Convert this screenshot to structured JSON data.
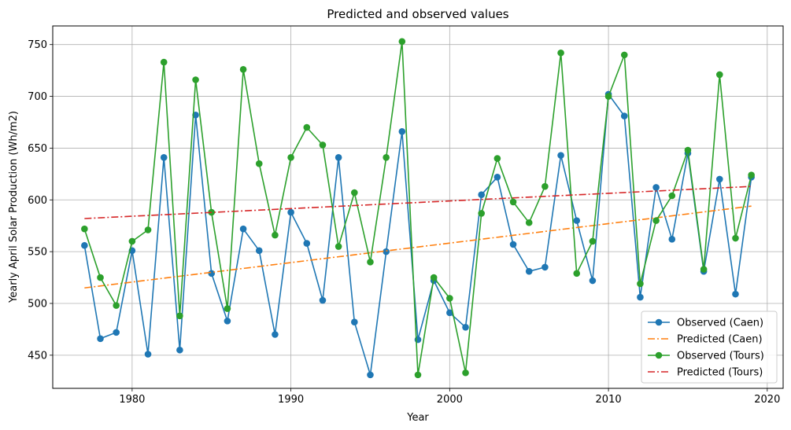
{
  "chart_data": {
    "type": "line",
    "title": "Predicted and observed values",
    "xlabel": "Year",
    "ylabel": "Yearly April Solar Production (Wh/m2)",
    "xlim": [
      1975,
      2021
    ],
    "ylim": [
      418,
      768
    ],
    "xticks": [
      1980,
      1990,
      2000,
      2010,
      2020
    ],
    "yticks": [
      450,
      500,
      550,
      600,
      650,
      700,
      750
    ],
    "grid": true,
    "legend_position": "lower-right",
    "x": [
      1977,
      1978,
      1979,
      1980,
      1981,
      1982,
      1983,
      1984,
      1985,
      1986,
      1987,
      1988,
      1989,
      1990,
      1991,
      1992,
      1993,
      1994,
      1995,
      1996,
      1997,
      1998,
      1999,
      2000,
      2001,
      2002,
      2003,
      2004,
      2005,
      2006,
      2007,
      2008,
      2009,
      2010,
      2011,
      2012,
      2013,
      2014,
      2015,
      2016,
      2017,
      2018,
      2019
    ],
    "series": [
      {
        "name": "Observed (Caen)",
        "color": "#1f77b4",
        "style": "solid-marker",
        "values": [
          556,
          466,
          472,
          551,
          451,
          641,
          455,
          682,
          529,
          483,
          572,
          551,
          470,
          588,
          558,
          503,
          641,
          482,
          431,
          550,
          666,
          465,
          522,
          491,
          477,
          605,
          622,
          557,
          531,
          535,
          643,
          580,
          522,
          702,
          681,
          506,
          612,
          562,
          645,
          531,
          620,
          509,
          622
        ]
      },
      {
        "name": "Predicted (Caen)",
        "color": "#ff7f0e",
        "style": "dashdot",
        "from": [
          1977,
          515
        ],
        "to": [
          2019,
          594
        ]
      },
      {
        "name": "Observed (Tours)",
        "color": "#2ca02c",
        "style": "solid-marker",
        "values": [
          572,
          525,
          498,
          560,
          571,
          733,
          488,
          716,
          588,
          495,
          726,
          635,
          566,
          641,
          670,
          653,
          555,
          607,
          540,
          641,
          753,
          431,
          525,
          505,
          433,
          587,
          640,
          598,
          578,
          613,
          742,
          529,
          560,
          700,
          740,
          519,
          580,
          604,
          648,
          533,
          721,
          563,
          624
        ]
      },
      {
        "name": "Predicted (Tours)",
        "color": "#d62728",
        "style": "dashdot",
        "from": [
          1977,
          582
        ],
        "to": [
          2019,
          613
        ]
      }
    ]
  }
}
